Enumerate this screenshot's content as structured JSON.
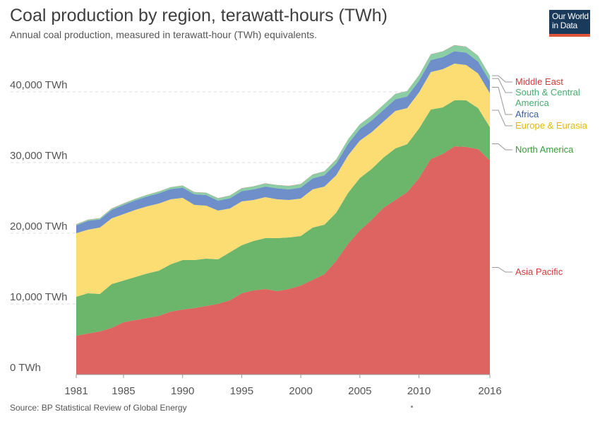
{
  "header": {
    "title": "Coal production by region, terawatt-hours (TWh)",
    "subtitle": "Annual coal production, measured in terawatt-hour (TWh) equivalents."
  },
  "logo": {
    "line1": "Our World",
    "line2": "in Data"
  },
  "footer": {
    "source": "Source: BP Statistical Review of Global Energy"
  },
  "chart_data": {
    "type": "area",
    "stacked": true,
    "xlim": [
      1981,
      2016
    ],
    "ylim": [
      0,
      48000
    ],
    "x_ticks": [
      1981,
      1985,
      1990,
      1995,
      2000,
      2005,
      2010,
      2016
    ],
    "y_ticks": [
      {
        "value": 0,
        "label": "0 TWh"
      },
      {
        "value": 10000,
        "label": "10,000 TWh"
      },
      {
        "value": 20000,
        "label": "20,000 TWh"
      },
      {
        "value": 30000,
        "label": "30,000 TWh"
      },
      {
        "value": 40000,
        "label": "40,000 TWh"
      }
    ],
    "grid": "horizontal",
    "legend_placement": "right",
    "x": [
      1981,
      1982,
      1983,
      1984,
      1985,
      1986,
      1987,
      1988,
      1989,
      1990,
      1991,
      1992,
      1993,
      1994,
      1995,
      1996,
      1997,
      1998,
      1999,
      2000,
      2001,
      2002,
      2003,
      2004,
      2005,
      2006,
      2007,
      2008,
      2009,
      2010,
      2011,
      2012,
      2013,
      2014,
      2015,
      2016
    ],
    "series": [
      {
        "name": "Asia Pacific",
        "color": "#d9534f",
        "values": [
          5500,
          5800,
          6100,
          6600,
          7400,
          7700,
          8000,
          8300,
          8900,
          9200,
          9400,
          9700,
          10000,
          10500,
          11500,
          11900,
          12100,
          11800,
          12100,
          12600,
          13400,
          14200,
          16100,
          18500,
          20400,
          21900,
          23600,
          24700,
          25800,
          27800,
          30500,
          31200,
          32300,
          32200,
          31900,
          30300
        ]
      },
      {
        "name": "North America",
        "color": "#5cae5c",
        "values": [
          5500,
          5700,
          5300,
          6200,
          5900,
          6100,
          6300,
          6400,
          6700,
          7000,
          6800,
          6700,
          6300,
          6800,
          6800,
          7000,
          7200,
          7500,
          7300,
          7000,
          7400,
          7000,
          6800,
          7200,
          7400,
          7200,
          7100,
          7300,
          6800,
          7000,
          7000,
          6600,
          6500,
          6600,
          5800,
          4700
        ]
      },
      {
        "name": "Europe & Eurasia",
        "color": "#fcd964",
        "values": [
          9000,
          9000,
          9400,
          9300,
          9400,
          9500,
          9500,
          9500,
          9200,
          8800,
          7800,
          7500,
          6900,
          6200,
          6200,
          5800,
          5800,
          5500,
          5300,
          5300,
          5400,
          5400,
          5300,
          5300,
          5300,
          5200,
          5100,
          5300,
          5100,
          5100,
          5300,
          5400,
          5200,
          5000,
          4900,
          4800
        ]
      },
      {
        "name": "Africa",
        "color": "#5f83c4",
        "values": [
          1100,
          1250,
          1150,
          1200,
          1300,
          1350,
          1400,
          1450,
          1450,
          1450,
          1500,
          1500,
          1400,
          1450,
          1450,
          1500,
          1500,
          1550,
          1500,
          1550,
          1550,
          1600,
          1650,
          1650,
          1650,
          1650,
          1650,
          1650,
          1650,
          1650,
          1700,
          1700,
          1750,
          1750,
          1700,
          1700
        ]
      },
      {
        "name": "South & Central America",
        "color": "#7ec99b",
        "values": [
          150,
          150,
          170,
          190,
          200,
          210,
          220,
          240,
          260,
          280,
          300,
          320,
          340,
          370,
          400,
          420,
          440,
          460,
          480,
          500,
          540,
          560,
          580,
          620,
          660,
          690,
          720,
          760,
          760,
          780,
          800,
          820,
          850,
          830,
          800,
          780
        ]
      },
      {
        "name": "Middle East",
        "color": "#e63946",
        "values": [
          20,
          20,
          20,
          20,
          20,
          20,
          20,
          20,
          20,
          20,
          20,
          20,
          20,
          20,
          20,
          20,
          20,
          20,
          20,
          20,
          20,
          20,
          20,
          20,
          20,
          20,
          20,
          20,
          20,
          20,
          20,
          20,
          20,
          20,
          20,
          20
        ]
      }
    ],
    "legend": [
      {
        "series": 5,
        "lines": [
          "Middle East"
        ],
        "color": "#d43a3a"
      },
      {
        "series": 4,
        "lines": [
          "South & Central",
          "America"
        ],
        "color": "#4aab6e"
      },
      {
        "series": 3,
        "lines": [
          "Africa"
        ],
        "color": "#3a5ca8"
      },
      {
        "series": 2,
        "lines": [
          "Europe & Eurasia"
        ],
        "color": "#e8b800"
      },
      {
        "series": 1,
        "lines": [
          "North America"
        ],
        "color": "#3a9a3a"
      },
      {
        "series": 0,
        "lines": [
          "Asia Pacific"
        ],
        "color": "#d43a3a"
      }
    ]
  }
}
